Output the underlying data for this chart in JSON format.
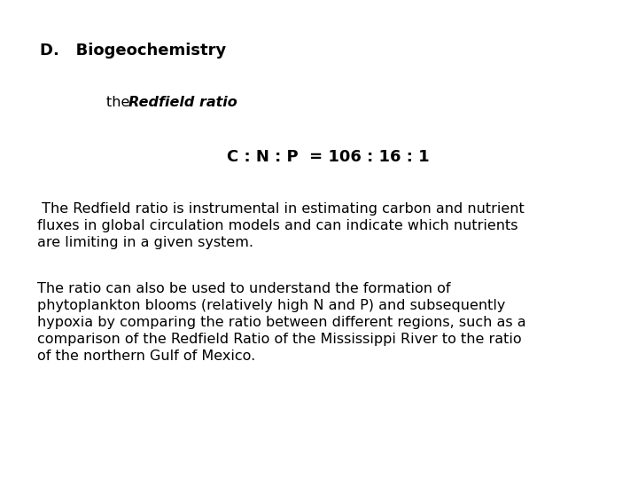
{
  "background_color": "#ffffff",
  "title_text": "D.   Biogeochemistry",
  "subtitle_normal": "the ",
  "subtitle_bold_italic": "Redfield ratio",
  "subtitle_colon": " :",
  "ratio_text": "C : N : P  = 106 : 16 : 1",
  "para1_line1": " The Redfield ratio is instrumental in estimating carbon and nutrient",
  "para1_line2": "fluxes in global circulation models and can indicate which nutrients",
  "para1_line3": "are limiting in a given system.",
  "para2_line1": "The ratio can also be used to understand the formation of",
  "para2_line2": "phytoplankton blooms (relatively high N and P) and subsequently",
  "para2_line3": "hypoxia by comparing the ratio between different regions, such as a",
  "para2_line4": "comparison of the Redfield Ratio of the Mississippi River to the ratio",
  "para2_line5": "of the northern Gulf of Mexico.",
  "title_fontsize": 13,
  "subtitle_fontsize": 11.5,
  "ratio_fontsize": 13,
  "body_fontsize": 11.5
}
